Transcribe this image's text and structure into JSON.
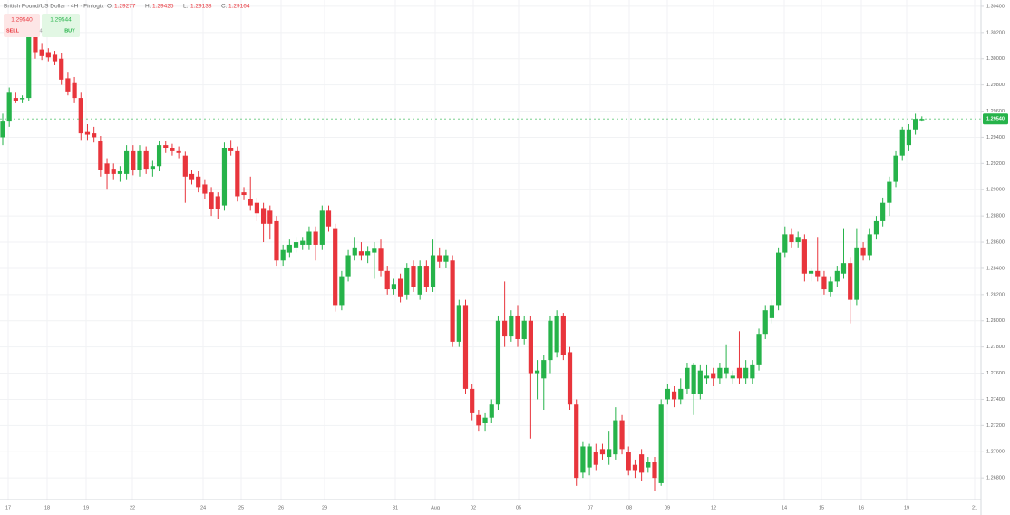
{
  "chart_data": {
    "type": "candlestick",
    "instrument": "British Pound/US Dollar · 4H · Finlogix",
    "ohlc_header": [
      {
        "label": "O:",
        "value": "1.29277"
      },
      {
        "label": "H:",
        "value": "1.29425"
      },
      {
        "label": "L:",
        "value": "1.29138"
      },
      {
        "label": "C:",
        "value": "1.29164"
      }
    ],
    "sell": {
      "price": "1.29540",
      "label": "SELL"
    },
    "buy": {
      "price": "1.29544",
      "label": "BUY"
    },
    "spread": "4",
    "up_color": "#26b34a",
    "down_color": "#e8353c",
    "price_line": {
      "value": 1.2954,
      "label": "1.29540"
    },
    "ylim": [
      1.26635,
      1.30448
    ],
    "yticks": [
      {
        "value": 1.304,
        "label": "1.30400"
      },
      {
        "value": 1.302,
        "label": "1.30200"
      },
      {
        "value": 1.3,
        "label": "1.30000"
      },
      {
        "value": 1.298,
        "label": "1.29800"
      },
      {
        "value": 1.296,
        "label": "1.29600"
      },
      {
        "value": 1.294,
        "label": "1.29400"
      },
      {
        "value": 1.292,
        "label": "1.29200"
      },
      {
        "value": 1.29,
        "label": "1.29000"
      },
      {
        "value": 1.288,
        "label": "1.28800"
      },
      {
        "value": 1.286,
        "label": "1.28600"
      },
      {
        "value": 1.284,
        "label": "1.28400"
      },
      {
        "value": 1.282,
        "label": "1.28200"
      },
      {
        "value": 1.28,
        "label": "1.28000"
      },
      {
        "value": 1.278,
        "label": "1.27800"
      },
      {
        "value": 1.276,
        "label": "1.27600"
      },
      {
        "value": 1.274,
        "label": "1.27400"
      },
      {
        "value": 1.272,
        "label": "1.27200"
      },
      {
        "value": 1.27,
        "label": "1.27000"
      },
      {
        "value": 1.268,
        "label": "1.26800"
      }
    ],
    "x_labels": [
      "17",
      "18",
      "19",
      "22",
      "24",
      "25",
      "26",
      "29",
      "31",
      "Aug",
      "02",
      "05",
      "07",
      "08",
      "09",
      "12",
      "14",
      "15",
      "16",
      "19",
      "21"
    ],
    "candles": [
      [
        1.294,
        1.2958,
        1.2934,
        1.2952
      ],
      [
        1.2952,
        1.2978,
        1.2948,
        1.2974
      ],
      [
        1.297,
        1.2974,
        1.2966,
        1.2968
      ],
      [
        1.2969,
        1.2972,
        1.2966,
        1.297
      ],
      [
        1.297,
        1.302,
        1.2968,
        1.3017
      ],
      [
        1.3018,
        1.3022,
        1.3,
        1.3005
      ],
      [
        1.3007,
        1.3012,
        1.2999,
        1.3002
      ],
      [
        1.3005,
        1.3008,
        1.2998,
        1.3001
      ],
      [
        1.3003,
        1.3006,
        1.2995,
        1.2998
      ],
      [
        1.3,
        1.3004,
        1.298,
        1.2984
      ],
      [
        1.2985,
        1.299,
        1.2972,
        1.2975
      ],
      [
        1.2982,
        1.2986,
        1.2966,
        1.297
      ],
      [
        1.297,
        1.2974,
        1.2938,
        1.2943
      ],
      [
        1.2944,
        1.295,
        1.2938,
        1.2942
      ],
      [
        1.2943,
        1.2948,
        1.2936,
        1.294
      ],
      [
        1.2937,
        1.2941,
        1.291,
        1.2915
      ],
      [
        1.292,
        1.2924,
        1.29,
        1.2912
      ],
      [
        1.2916,
        1.292,
        1.2908,
        1.2912
      ],
      [
        1.2912,
        1.2918,
        1.2906,
        1.2914
      ],
      [
        1.2912,
        1.2934,
        1.2908,
        1.293
      ],
      [
        1.293,
        1.2934,
        1.2911,
        1.2915
      ],
      [
        1.2915,
        1.2934,
        1.291,
        1.293
      ],
      [
        1.293,
        1.2933,
        1.2912,
        1.2916
      ],
      [
        1.2916,
        1.2922,
        1.291,
        1.2918
      ],
      [
        1.2918,
        1.2937,
        1.2914,
        1.2934
      ],
      [
        1.2934,
        1.2937,
        1.2928,
        1.2932
      ],
      [
        1.2932,
        1.2935,
        1.2926,
        1.293
      ],
      [
        1.293,
        1.2933,
        1.2924,
        1.2928
      ],
      [
        1.2926,
        1.2929,
        1.289,
        1.291
      ],
      [
        1.2912,
        1.2915,
        1.2904,
        1.2908
      ],
      [
        1.291,
        1.2914,
        1.2898,
        1.2902
      ],
      [
        1.2904,
        1.2908,
        1.2893,
        1.2897
      ],
      [
        1.2898,
        1.2902,
        1.288,
        1.2885
      ],
      [
        1.2895,
        1.2898,
        1.2878,
        1.2885
      ],
      [
        1.2888,
        1.2936,
        1.2884,
        1.2932
      ],
      [
        1.2932,
        1.2938,
        1.2926,
        1.293
      ],
      [
        1.293,
        1.2933,
        1.2891,
        1.2895
      ],
      [
        1.2898,
        1.2902,
        1.2892,
        1.2896
      ],
      [
        1.2893,
        1.291,
        1.2884,
        1.2888
      ],
      [
        1.289,
        1.2894,
        1.2876,
        1.2882
      ],
      [
        1.2886,
        1.289,
        1.286,
        1.2874
      ],
      [
        1.2884,
        1.2888,
        1.2862,
        1.2874
      ],
      [
        1.2876,
        1.288,
        1.2842,
        1.2846
      ],
      [
        1.2846,
        1.2858,
        1.2842,
        1.2854
      ],
      [
        1.2852,
        1.2862,
        1.2848,
        1.2858
      ],
      [
        1.2856,
        1.2864,
        1.2852,
        1.286
      ],
      [
        1.2858,
        1.2864,
        1.2854,
        1.2861
      ],
      [
        1.2858,
        1.2872,
        1.2854,
        1.2868
      ],
      [
        1.2868,
        1.2872,
        1.2846,
        1.2858
      ],
      [
        1.2858,
        1.2888,
        1.2854,
        1.2884
      ],
      [
        1.2884,
        1.2888,
        1.2868,
        1.2872
      ],
      [
        1.287,
        1.2874,
        1.2807,
        1.2812
      ],
      [
        1.2812,
        1.2838,
        1.2808,
        1.2834
      ],
      [
        1.2834,
        1.2854,
        1.283,
        1.285
      ],
      [
        1.285,
        1.2864,
        1.2846,
        1.2856
      ],
      [
        1.2853,
        1.286,
        1.2846,
        1.285
      ],
      [
        1.285,
        1.2857,
        1.2844,
        1.2853
      ],
      [
        1.2852,
        1.286,
        1.2832,
        1.2855
      ],
      [
        1.2855,
        1.2862,
        1.2834,
        1.2838
      ],
      [
        1.2838,
        1.2842,
        1.282,
        1.2824
      ],
      [
        1.2824,
        1.2832,
        1.282,
        1.2828
      ],
      [
        1.2832,
        1.2836,
        1.2814,
        1.2818
      ],
      [
        1.282,
        1.2844,
        1.2816,
        1.284
      ],
      [
        1.2842,
        1.2846,
        1.2822,
        1.2826
      ],
      [
        1.282,
        1.2846,
        1.2816,
        1.2842
      ],
      [
        1.2842,
        1.2846,
        1.2822,
        1.2826
      ],
      [
        1.2826,
        1.2862,
        1.2822,
        1.285
      ],
      [
        1.285,
        1.2856,
        1.284,
        1.2845
      ],
      [
        1.2845,
        1.2854,
        1.284,
        1.285
      ],
      [
        1.2846,
        1.285,
        1.278,
        1.2784
      ],
      [
        1.2784,
        1.2816,
        1.278,
        1.2812
      ],
      [
        1.2812,
        1.2816,
        1.2744,
        1.2748
      ],
      [
        1.2748,
        1.2752,
        1.2724,
        1.273
      ],
      [
        1.2728,
        1.2732,
        1.2716,
        1.272
      ],
      [
        1.2722,
        1.273,
        1.2716,
        1.2726
      ],
      [
        1.2726,
        1.274,
        1.2722,
        1.2736
      ],
      [
        1.2736,
        1.2804,
        1.2732,
        1.28
      ],
      [
        1.28,
        1.283,
        1.278,
        1.2788
      ],
      [
        1.2788,
        1.2808,
        1.2784,
        1.2804
      ],
      [
        1.2804,
        1.2812,
        1.278,
        1.2786
      ],
      [
        1.2786,
        1.2804,
        1.2782,
        1.28
      ],
      [
        1.28,
        1.2804,
        1.271,
        1.276
      ],
      [
        1.276,
        1.277,
        1.274,
        1.2762
      ],
      [
        1.2756,
        1.2774,
        1.2732,
        1.277
      ],
      [
        1.277,
        1.2804,
        1.276,
        1.28
      ],
      [
        1.2776,
        1.2808,
        1.2772,
        1.2804
      ],
      [
        1.2804,
        1.2806,
        1.277,
        1.2774
      ],
      [
        1.2776,
        1.278,
        1.2732,
        1.2736
      ],
      [
        1.2736,
        1.274,
        1.2674,
        1.268
      ],
      [
        1.2684,
        1.2708,
        1.268,
        1.2704
      ],
      [
        1.2688,
        1.2706,
        1.2682,
        1.2704
      ],
      [
        1.27,
        1.2706,
        1.2686,
        1.269
      ],
      [
        1.2702,
        1.2706,
        1.2694,
        1.2698
      ],
      [
        1.2696,
        1.2716,
        1.269,
        1.2702
      ],
      [
        1.2698,
        1.2734,
        1.2694,
        1.2724
      ],
      [
        1.2724,
        1.2728,
        1.2698,
        1.2702
      ],
      [
        1.27,
        1.2704,
        1.2682,
        1.2686
      ],
      [
        1.269,
        1.2694,
        1.268,
        1.2686
      ],
      [
        1.2698,
        1.2702,
        1.2678,
        1.2684
      ],
      [
        1.2688,
        1.2696,
        1.2684,
        1.2692
      ],
      [
        1.2692,
        1.2696,
        1.267,
        1.268
      ],
      [
        1.2676,
        1.274,
        1.2674,
        1.2736
      ],
      [
        1.274,
        1.2752,
        1.2736,
        1.2748
      ],
      [
        1.2746,
        1.275,
        1.2734,
        1.274
      ],
      [
        1.274,
        1.2756,
        1.2736,
        1.2748
      ],
      [
        1.2748,
        1.2768,
        1.2744,
        1.2764
      ],
      [
        1.2744,
        1.2768,
        1.2728,
        1.2766
      ],
      [
        1.2744,
        1.2766,
        1.274,
        1.2762
      ],
      [
        1.2756,
        1.2766,
        1.2752,
        1.2758
      ],
      [
        1.276,
        1.2764,
        1.275,
        1.2756
      ],
      [
        1.2756,
        1.2768,
        1.2752,
        1.2764
      ],
      [
        1.276,
        1.2782,
        1.2756,
        1.2764
      ],
      [
        1.2756,
        1.2762,
        1.2752,
        1.2758
      ],
      [
        1.2764,
        1.2792,
        1.2752,
        1.2756
      ],
      [
        1.2756,
        1.277,
        1.2752,
        1.2764
      ],
      [
        1.2756,
        1.277,
        1.2752,
        1.2766
      ],
      [
        1.2766,
        1.2794,
        1.2762,
        1.279
      ],
      [
        1.279,
        1.2812,
        1.2786,
        1.2808
      ],
      [
        1.2802,
        1.2816,
        1.2798,
        1.2812
      ],
      [
        1.2812,
        1.2856,
        1.2808,
        1.2852
      ],
      [
        1.2852,
        1.2872,
        1.2848,
        1.2866
      ],
      [
        1.2866,
        1.287,
        1.2856,
        1.286
      ],
      [
        1.286,
        1.2868,
        1.2856,
        1.2864
      ],
      [
        1.2862,
        1.2866,
        1.283,
        1.2836
      ],
      [
        1.2836,
        1.284,
        1.283,
        1.2838
      ],
      [
        1.2838,
        1.2864,
        1.283,
        1.2834
      ],
      [
        1.2834,
        1.2838,
        1.282,
        1.2824
      ],
      [
        1.2822,
        1.2834,
        1.2818,
        1.283
      ],
      [
        1.283,
        1.2842,
        1.2826,
        1.2838
      ],
      [
        1.2836,
        1.287,
        1.2832,
        1.2844
      ],
      [
        1.2844,
        1.2848,
        1.2798,
        1.2816
      ],
      [
        1.2816,
        1.287,
        1.2812,
        1.2856
      ],
      [
        1.2856,
        1.286,
        1.2846,
        1.285
      ],
      [
        1.285,
        1.287,
        1.2846,
        1.2866
      ],
      [
        1.2866,
        1.288,
        1.2862,
        1.2876
      ],
      [
        1.2876,
        1.2894,
        1.2872,
        1.289
      ],
      [
        1.289,
        1.291,
        1.288,
        1.2906
      ],
      [
        1.2906,
        1.293,
        1.2902,
        1.2926
      ],
      [
        1.2926,
        1.2948,
        1.2922,
        1.2946
      ],
      [
        1.2934,
        1.295,
        1.293,
        1.2946
      ],
      [
        1.2946,
        1.2958,
        1.2942,
        1.2954
      ],
      [
        1.2953,
        1.2956,
        1.2952,
        1.2954
      ]
    ]
  }
}
